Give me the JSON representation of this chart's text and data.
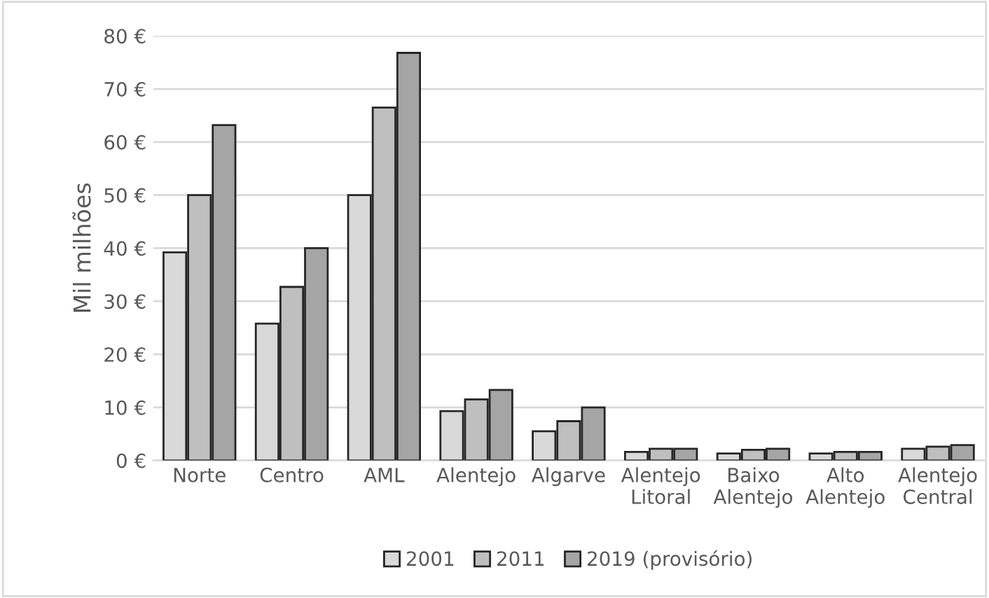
{
  "chart_data": {
    "type": "bar",
    "ylabel": "Mil milhões",
    "categories": [
      "Norte",
      "Centro",
      "AML",
      "Alentejo",
      "Algarve",
      "Alentejo\nLitoral",
      "Baixo\nAlentejo",
      "Alto\nAlentejo",
      "Alentejo\nCentral"
    ],
    "series": [
      {
        "name": "2001",
        "color": "#d9d9d9",
        "values": [
          39.2,
          25.8,
          50,
          9.3,
          5.5,
          1.6,
          1.3,
          1.3,
          2.2
        ]
      },
      {
        "name": "2011",
        "color": "#bfbfbf",
        "values": [
          50,
          32.7,
          66.5,
          11.5,
          7.4,
          2.2,
          2.0,
          1.6,
          2.6
        ]
      },
      {
        "name": "2019 (provisório)",
        "color": "#a5a5a5",
        "values": [
          63.2,
          40,
          76.8,
          13.3,
          10,
          2.2,
          2.2,
          1.6,
          2.9
        ]
      }
    ],
    "ylim": [
      0,
      80
    ],
    "yticks": [
      {
        "value": 0,
        "label": "0 €"
      },
      {
        "value": 10,
        "label": "10 €"
      },
      {
        "value": 20,
        "label": "20 €"
      },
      {
        "value": 30,
        "label": "30 €"
      },
      {
        "value": 40,
        "label": "40 €"
      },
      {
        "value": 50,
        "label": "50 €"
      },
      {
        "value": 60,
        "label": "60 €"
      },
      {
        "value": 70,
        "label": "70 €"
      },
      {
        "value": 80,
        "label": "80 €"
      }
    ],
    "grid": "y",
    "legend": "bottom"
  }
}
